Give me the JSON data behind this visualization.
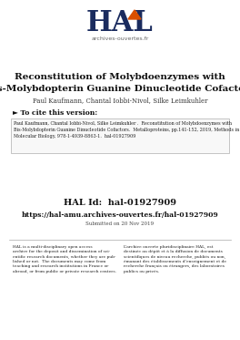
{
  "bg_color": "#ffffff",
  "title_line1": "Reconstitution of Molybdoenzymes with",
  "title_line2": "Bis-Molybdopterin Guanine Dinucleotide Cofactors",
  "authors": "Paul Kaufmann, Chantal Iobbi-Nivol, Silke Leimkuhler",
  "cite_header": "► To cite this version:",
  "cite_text": "Paul Kaufmann, Chantal Iobbi-Nivol, Silke Leimkuhler .  Reconstitution of Molybdoenzymes with\nBis-Molybdopterin Guanine Dinucleotide Cofactors.  Metalloproteins, pp.141-152, 2019, Methods in\nMolecular Biology, 978-1-4939-8863-1.  hal-01927909",
  "hal_id_label": "HAL Id:  hal-01927909",
  "hal_url": "https://hal-amu.archives-ouvertes.fr/hal-01927909",
  "submitted": "Submitted on 20 Nov 2019",
  "left_text": "HAL is a multi-disciplinary open access\narchive for the deposit and dissemination of sci-\nentific research documents, whether they are pub-\nlished or not.  The documents may come from\nteaching and research institutions in France or\nabroad, or from public or private research centers.",
  "right_text": "L’archive ouverte pluridisciplinaire HAL, est\ndestinée au dépôt et à la diffusion de documents\nscientifiques de niveau recherche, publiés ou non,\némanant des établissements d’enseignement et de\nrecherche français ou étrangers, des laboratoires\npublics ou privés.",
  "hal_dark_blue": "#1a2b5e",
  "hal_orange": "#d94f00",
  "cite_box_color": "#f8f8f8",
  "cite_box_border": "#bbbbbb",
  "separator_color": "#aaaaaa",
  "logo_hal_text": "HAL",
  "logo_sub_text": "archives-ouvertes.fr"
}
